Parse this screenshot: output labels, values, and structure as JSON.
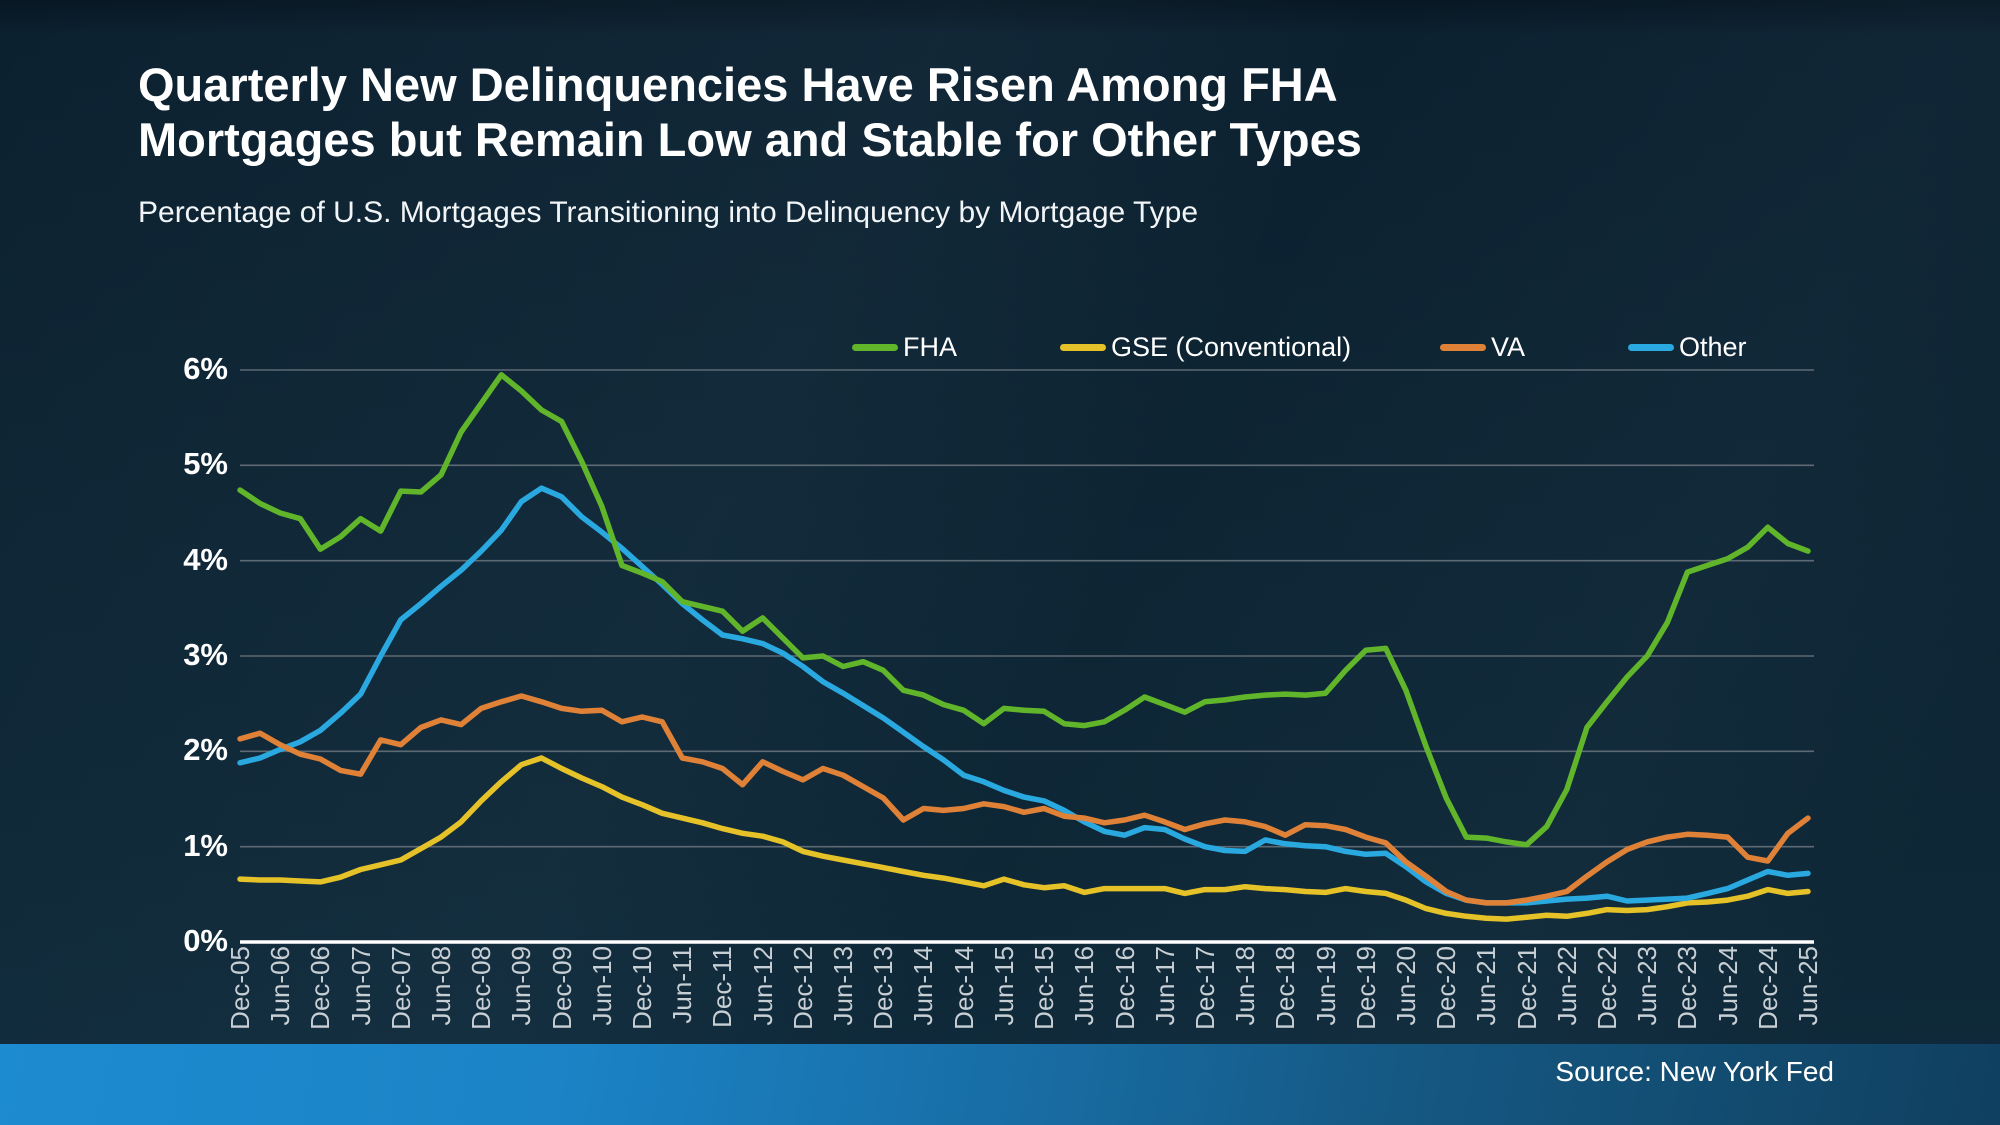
{
  "page": {
    "title": "Quarterly New Delinquencies Have Risen Among FHA Mortgages but Remain Low and Stable for Other Types",
    "subtitle": "Percentage of U.S. Mortgages Transitioning into Delinquency by Mortgage Type",
    "source": "Source: New York Fed"
  },
  "colors": {
    "background": "#0d2433",
    "gridline": "#5d6a73",
    "zero_axis": "#ffffff",
    "x_tick_text": "#c7ced4",
    "bottom_bar_left": "#1d8bd0",
    "bottom_bar_right": "#103f60",
    "fha": "#61b52a",
    "gse": "#e6c229",
    "va": "#e08138",
    "other": "#2aa9e0"
  },
  "chart_data": {
    "type": "line",
    "title": "Quarterly New Delinquencies Have Risen Among FHA Mortgages but Remain Low and Stable for Other Types",
    "subtitle": "Percentage of U.S. Mortgages Transitioning into Delinquency by Mortgage Type",
    "xlabel": "",
    "ylabel": "",
    "ylim": [
      0,
      6
    ],
    "grid": true,
    "legend_position": "top",
    "frequency": "quarterly (ticks labeled semi-annually)",
    "y_tick_labels": [
      "0%",
      "1%",
      "2%",
      "3%",
      "4%",
      "5%",
      "6%"
    ],
    "x_tick_labels": [
      "Dec-05",
      "Jun-06",
      "Dec-06",
      "Jun-07",
      "Dec-07",
      "Jun-08",
      "Dec-08",
      "Jun-09",
      "Dec-09",
      "Jun-10",
      "Dec-10",
      "Jun-11",
      "Dec-11",
      "Jun-12",
      "Dec-12",
      "Jun-13",
      "Dec-13",
      "Jun-14",
      "Dec-14",
      "Jun-15",
      "Dec-15",
      "Jun-16",
      "Dec-16",
      "Jun-17",
      "Dec-17",
      "Jun-18",
      "Dec-18",
      "Jun-19",
      "Dec-19",
      "Jun-20",
      "Dec-20",
      "Jun-21",
      "Dec-21",
      "Jun-22",
      "Dec-22",
      "Jun-23",
      "Dec-23",
      "Jun-24",
      "Dec-24",
      "Jun-25"
    ],
    "series": [
      {
        "name": "FHA",
        "color": "#61b52a",
        "values": [
          4.74,
          4.6,
          4.5,
          4.44,
          4.12,
          4.25,
          4.44,
          4.31,
          4.73,
          4.72,
          4.9,
          5.35,
          5.65,
          5.95,
          5.78,
          5.58,
          5.46,
          5.04,
          4.57,
          3.95,
          3.87,
          3.78,
          3.57,
          3.52,
          3.47,
          3.26,
          3.4,
          3.19,
          2.98,
          3.0,
          2.89,
          2.94,
          2.85,
          2.64,
          2.59,
          2.49,
          2.43,
          2.29,
          2.45,
          2.43,
          2.42,
          2.29,
          2.27,
          2.31,
          2.43,
          2.57,
          2.49,
          2.41,
          2.52,
          2.54,
          2.57,
          2.59,
          2.6,
          2.59,
          2.61,
          2.85,
          3.06,
          3.08,
          2.64,
          2.05,
          1.51,
          1.1,
          1.09,
          1.05,
          1.02,
          1.21,
          1.6,
          2.25,
          2.52,
          2.78,
          3.0,
          3.35,
          3.88,
          3.95,
          4.02,
          4.14,
          4.35,
          4.18,
          4.1
        ]
      },
      {
        "name": "GSE (Conventional)",
        "color": "#e6c229",
        "values": [
          0.66,
          0.65,
          0.65,
          0.64,
          0.63,
          0.68,
          0.76,
          0.81,
          0.86,
          0.98,
          1.1,
          1.26,
          1.48,
          1.68,
          1.86,
          1.93,
          1.82,
          1.72,
          1.63,
          1.52,
          1.44,
          1.35,
          1.3,
          1.25,
          1.19,
          1.14,
          1.11,
          1.05,
          0.95,
          0.9,
          0.86,
          0.82,
          0.78,
          0.74,
          0.7,
          0.67,
          0.63,
          0.59,
          0.66,
          0.6,
          0.57,
          0.59,
          0.52,
          0.56,
          0.56,
          0.56,
          0.56,
          0.51,
          0.55,
          0.55,
          0.58,
          0.56,
          0.55,
          0.53,
          0.52,
          0.56,
          0.53,
          0.51,
          0.44,
          0.35,
          0.3,
          0.27,
          0.25,
          0.24,
          0.26,
          0.28,
          0.27,
          0.3,
          0.34,
          0.33,
          0.34,
          0.37,
          0.41,
          0.42,
          0.44,
          0.48,
          0.55,
          0.51,
          0.53
        ]
      },
      {
        "name": "VA",
        "color": "#e08138",
        "values": [
          2.13,
          2.19,
          2.07,
          1.97,
          1.92,
          1.8,
          1.76,
          2.12,
          2.07,
          2.25,
          2.33,
          2.28,
          2.45,
          2.52,
          2.58,
          2.52,
          2.45,
          2.42,
          2.43,
          2.31,
          2.36,
          2.31,
          1.93,
          1.89,
          1.82,
          1.65,
          1.89,
          1.79,
          1.7,
          1.82,
          1.75,
          1.63,
          1.51,
          1.28,
          1.4,
          1.38,
          1.4,
          1.45,
          1.42,
          1.36,
          1.4,
          1.32,
          1.3,
          1.25,
          1.28,
          1.33,
          1.26,
          1.18,
          1.24,
          1.28,
          1.26,
          1.21,
          1.12,
          1.23,
          1.22,
          1.18,
          1.1,
          1.04,
          0.84,
          0.69,
          0.53,
          0.44,
          0.41,
          0.41,
          0.44,
          0.48,
          0.53,
          0.69,
          0.84,
          0.97,
          1.05,
          1.1,
          1.13,
          1.12,
          1.1,
          0.89,
          0.85,
          1.14,
          1.3
        ]
      },
      {
        "name": "Other",
        "color": "#2aa9e0",
        "values": [
          1.88,
          1.93,
          2.02,
          2.1,
          2.22,
          2.4,
          2.6,
          3.0,
          3.38,
          3.55,
          3.73,
          3.9,
          4.1,
          4.32,
          4.62,
          4.76,
          4.67,
          4.46,
          4.3,
          4.13,
          3.94,
          3.75,
          3.55,
          3.38,
          3.22,
          3.18,
          3.13,
          3.03,
          2.89,
          2.73,
          2.61,
          2.48,
          2.35,
          2.2,
          2.05,
          1.91,
          1.75,
          1.68,
          1.59,
          1.52,
          1.48,
          1.38,
          1.26,
          1.16,
          1.12,
          1.2,
          1.18,
          1.08,
          1.0,
          0.96,
          0.95,
          1.07,
          1.03,
          1.01,
          1.0,
          0.95,
          0.92,
          0.93,
          0.79,
          0.63,
          0.51,
          0.44,
          0.41,
          0.41,
          0.41,
          0.43,
          0.45,
          0.46,
          0.48,
          0.43,
          0.44,
          0.45,
          0.46,
          0.51,
          0.56,
          0.65,
          0.74,
          0.7,
          0.72
        ]
      }
    ]
  }
}
